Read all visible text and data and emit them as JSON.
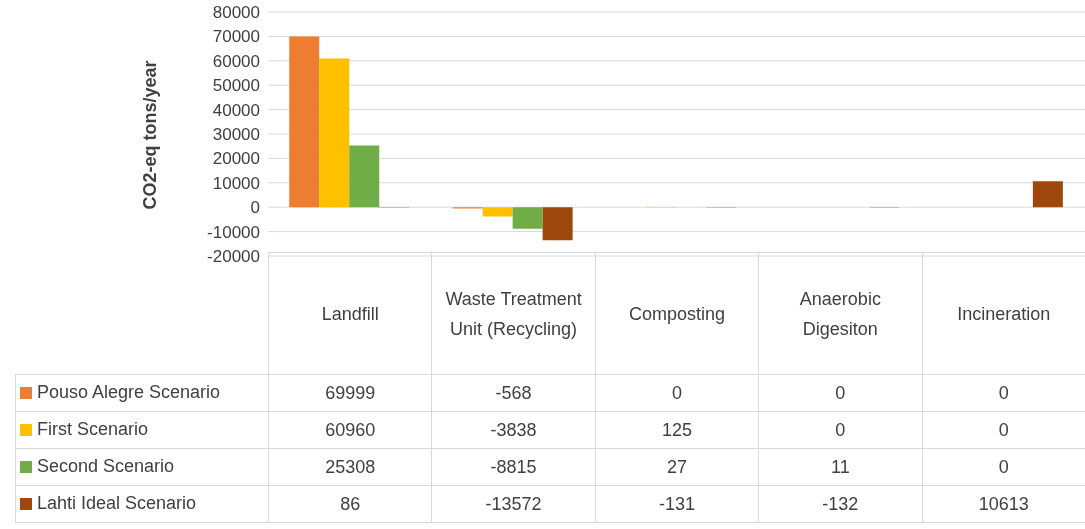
{
  "chart_data": {
    "type": "bar",
    "ylabel": "CO2-eq tons/year",
    "categories": [
      "Landfill",
      "Waste Treatment Unit (Recycling)",
      "Composting",
      "Anaerobic Digesiton",
      "Incineration"
    ],
    "series": [
      {
        "name": "Pouso Alegre Scenario",
        "color": "#ed7d31",
        "values": [
          69999,
          -568,
          0,
          0,
          0
        ]
      },
      {
        "name": "First Scenario",
        "color": "#ffc000",
        "values": [
          60960,
          -3838,
          125,
          0,
          0
        ]
      },
      {
        "name": "Second Scenario",
        "color": "#70ad47",
        "values": [
          25308,
          -8815,
          27,
          11,
          0
        ]
      },
      {
        "name": "Lahti Ideal Scenario",
        "color": "#9e480e",
        "values": [
          86,
          -13572,
          -131,
          -132,
          10613
        ]
      }
    ],
    "ylim": [
      -20000,
      80000
    ],
    "yticks": [
      -20000,
      -10000,
      0,
      10000,
      20000,
      30000,
      40000,
      50000,
      60000,
      70000,
      80000
    ],
    "grid": "y",
    "legend": "bottom",
    "data_labels": true
  }
}
